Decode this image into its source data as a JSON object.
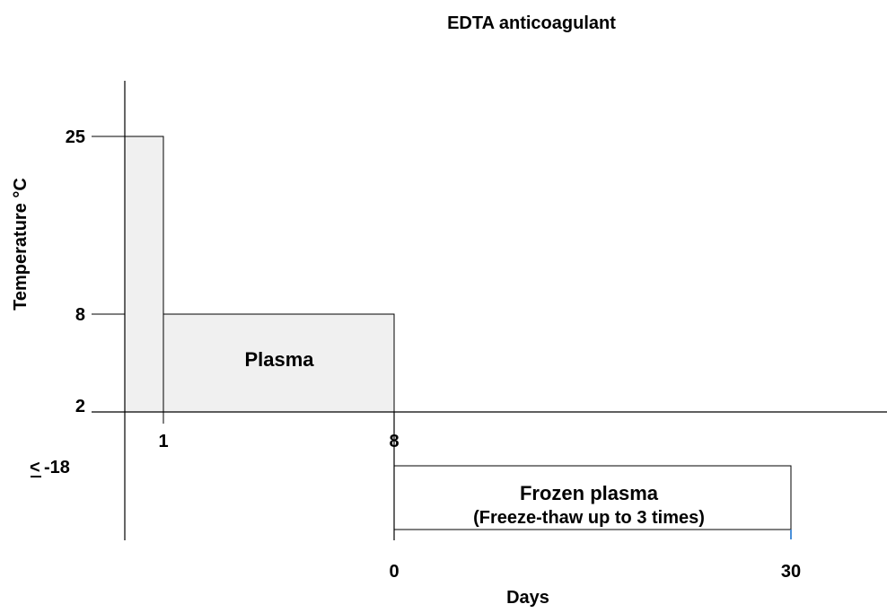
{
  "title": "EDTA anticoagulant",
  "y_axis_label": "Temperature °C",
  "x_axis_label": "Days",
  "y_ticks": {
    "t25": "25",
    "t8": "8",
    "t2": "2",
    "tm18": "-18"
  },
  "x_ticks_top": {
    "d1": "1",
    "d8": "8"
  },
  "x_ticks_bottom": {
    "d0": "0",
    "d30": "30"
  },
  "regions": {
    "plasma": "Plasma",
    "frozen_line1": "Frozen plasma",
    "frozen_line2": "(Freeze-thaw up to 3 times)"
  },
  "colors": {
    "fill": "#f0f0f0",
    "stroke": "#000000",
    "accent": "#4a90d9"
  }
}
